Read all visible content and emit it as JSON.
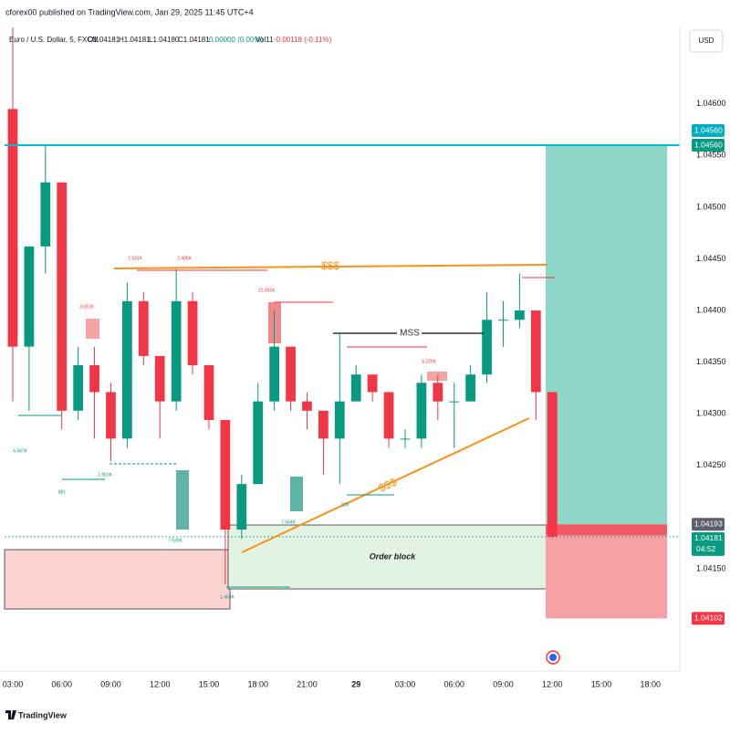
{
  "header": {
    "publisher": "cforex00 published on TradingView.com, Jan 29, 2025 11:45 UTC+4",
    "symbol": "Euro / U.S. Dollar, 5, FXCM",
    "ohlc": [
      "O1.04181",
      "H1.04181",
      "L1.04180",
      "C1.04181",
      "0.00000 (0.00%)"
    ],
    "volume": "Vol11",
    "change": "-0.00118 (-0.11%)",
    "currency": "USD"
  },
  "chart_data": {
    "type": "candlestick",
    "x": [
      0,
      1,
      2,
      3,
      4,
      5,
      6,
      7,
      8,
      9,
      10,
      11,
      12,
      13,
      14,
      15,
      16,
      17,
      18,
      19,
      20,
      21,
      22,
      23,
      24,
      25,
      26,
      27,
      28,
      29,
      30,
      31,
      32,
      33
    ],
    "open": [
      1.04595,
      1.04365,
      1.04462,
      1.04524,
      1.04303,
      1.04347,
      1.04321,
      1.04276,
      1.04409,
      1.04356,
      1.04312,
      1.04409,
      1.04347,
      1.04294,
      1.04188,
      1.04232,
      1.04312,
      1.04365,
      1.04312,
      1.04303,
      1.04276,
      1.04312,
      1.04338,
      1.04321,
      1.04276,
      1.04276,
      1.0433,
      1.04312,
      1.04312,
      1.04338,
      1.04391,
      1.04391,
      1.044,
      1.04321
    ],
    "high": [
      1.04674,
      1.04462,
      1.04559,
      1.04524,
      1.04365,
      1.04365,
      1.0433,
      1.04427,
      1.04418,
      1.04356,
      1.0444,
      1.04418,
      1.04347,
      1.04294,
      1.04241,
      1.0433,
      1.044,
      1.04365,
      1.04321,
      1.04303,
      1.04378,
      1.04347,
      1.04338,
      1.04321,
      1.04285,
      1.04338,
      1.04338,
      1.0433,
      1.04347,
      1.04418,
      1.04409,
      1.04436,
      1.044,
      1.04321
    ],
    "low": [
      1.04312,
      1.04303,
      1.04436,
      1.04285,
      1.04294,
      1.04276,
      1.04254,
      1.04267,
      1.04347,
      1.04276,
      1.04303,
      1.04338,
      1.04285,
      1.04135,
      1.04179,
      1.04232,
      1.04303,
      1.04303,
      1.04285,
      1.04241,
      1.04232,
      1.04312,
      1.04312,
      1.04267,
      1.04267,
      1.04267,
      1.04294,
      1.04267,
      1.04312,
      1.0433,
      1.04365,
      1.04383,
      1.04294,
      1.04179
    ],
    "close": [
      1.04365,
      1.04462,
      1.04524,
      1.04303,
      1.04347,
      1.04321,
      1.04276,
      1.04409,
      1.04356,
      1.04312,
      1.04409,
      1.04347,
      1.04294,
      1.04188,
      1.04232,
      1.04312,
      1.04365,
      1.04312,
      1.04303,
      1.04276,
      1.04312,
      1.04338,
      1.04321,
      1.04276,
      1.04276,
      1.0433,
      1.04312,
      1.04312,
      1.04338,
      1.04391,
      1.04391,
      1.044,
      1.04321,
      1.04181
    ],
    "up_color": "#089981",
    "down_color": "#f23645",
    "xlim": [
      -0.5,
      40.8
    ],
    "xticks": [
      {
        "value": 0,
        "label": "03:00"
      },
      {
        "value": 3,
        "label": "06:00"
      },
      {
        "value": 6,
        "label": "09:00"
      },
      {
        "value": 9,
        "label": "12:00"
      },
      {
        "value": 12,
        "label": "15:00"
      },
      {
        "value": 15,
        "label": "18:00"
      },
      {
        "value": 18,
        "label": "21:00"
      },
      {
        "value": 21,
        "label": "29"
      },
      {
        "value": 24,
        "label": "03:00"
      },
      {
        "value": 27,
        "label": "06:00"
      },
      {
        "value": 30,
        "label": "09:00"
      },
      {
        "value": 33,
        "label": "12:00"
      },
      {
        "value": 36,
        "label": "15:00"
      },
      {
        "value": 39,
        "label": "18:00"
      }
    ],
    "ylim": [
      1.04051,
      1.04674
    ],
    "yticks": [
      {
        "value": 1.046,
        "label": "1.04600"
      },
      {
        "value": 1.0455,
        "label": "1.04550"
      },
      {
        "value": 1.045,
        "label": "1.04500"
      },
      {
        "value": 1.0445,
        "label": "1.04450"
      },
      {
        "value": 1.044,
        "label": "1.04400"
      },
      {
        "value": 1.0435,
        "label": "1.04350"
      },
      {
        "value": 1.043,
        "label": "1.04300"
      },
      {
        "value": 1.0425,
        "label": "1.04250"
      },
      {
        "value": 1.0415,
        "label": "1.04150"
      }
    ],
    "horizontal_line": {
      "value": 1.0456,
      "label": "1.04560",
      "color": "#00bcd4"
    },
    "position": {
      "target": {
        "value": 1.0456,
        "label": "1.04560"
      },
      "entry": 1.04193,
      "stop": 1.04102
    },
    "last_price": 1.04181,
    "countdown": "04:52",
    "annotations": [
      "$$$",
      "$$$",
      "MSS",
      "Order block",
      "4.947K",
      "1.531K",
      "2.405K",
      "3.081K",
      "12.081K",
      "1.981K",
      "881",
      "7.539K",
      "7.564K",
      "1.454K",
      "4.229K",
      "229"
    ]
  },
  "footer": {
    "brand": "TradingView"
  }
}
